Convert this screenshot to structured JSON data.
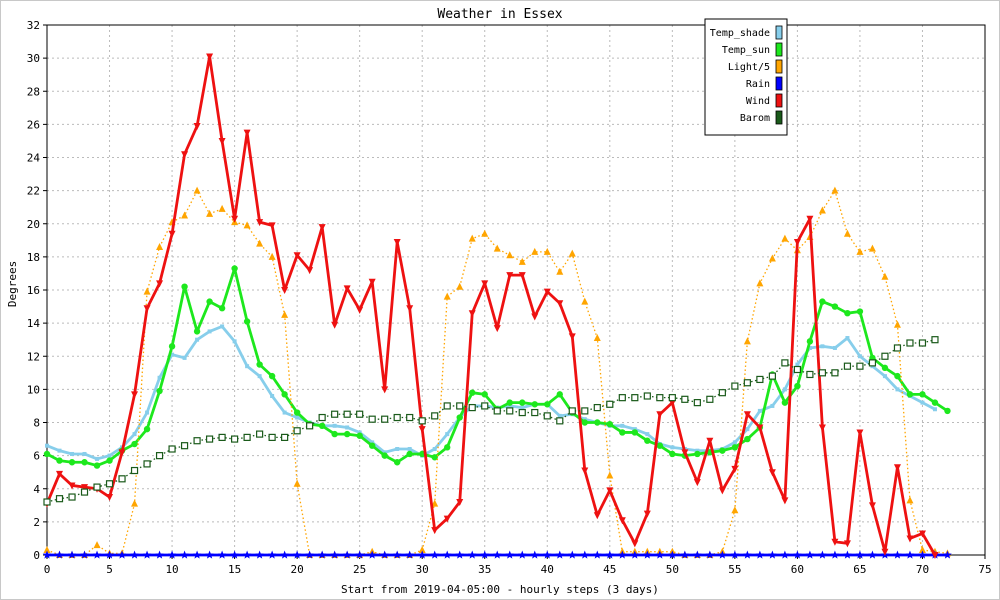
{
  "chart_data": {
    "type": "line",
    "title": "Weather in Essex",
    "xlabel": "Start from 2019-04-05:00 - hourly steps (3 days)",
    "ylabel": "Degrees",
    "xlim": [
      0,
      75
    ],
    "ylim": [
      0,
      32
    ],
    "xticks": [
      0,
      5,
      10,
      15,
      20,
      25,
      30,
      35,
      40,
      45,
      50,
      55,
      60,
      65,
      70,
      75
    ],
    "yticks": [
      0,
      2,
      4,
      6,
      8,
      10,
      12,
      14,
      16,
      18,
      20,
      22,
      24,
      26,
      28,
      30,
      32
    ],
    "grid": true,
    "legend_position": "top-right",
    "series": [
      {
        "name": "Temp_shade",
        "color": "#87ceeb",
        "style": "thick-line",
        "marker": "small-square",
        "values": [
          6.6,
          6.3,
          6.1,
          6.1,
          5.8,
          6.0,
          6.5,
          7.3,
          8.6,
          10.7,
          12.1,
          11.9,
          13.0,
          13.5,
          13.8,
          12.9,
          11.4,
          10.8,
          9.6,
          8.6,
          8.3,
          8.0,
          7.8,
          7.8,
          7.7,
          7.4,
          6.8,
          6.2,
          6.4,
          6.4,
          6.0,
          6.4,
          7.3,
          8.3,
          9.0,
          9.0,
          8.9,
          9.0,
          8.9,
          9.1,
          9.1,
          8.4,
          8.5,
          8.2,
          8.0,
          7.8,
          7.8,
          7.6,
          7.3,
          6.7,
          6.5,
          6.4,
          6.3,
          6.3,
          6.4,
          6.8,
          7.6,
          8.7,
          9.0,
          10.0,
          11.5,
          12.5,
          12.6,
          12.5,
          13.1,
          12.0,
          11.4,
          10.8,
          10.0,
          9.6,
          9.2,
          8.8
        ]
      },
      {
        "name": "Temp_sun",
        "color": "#1de81d",
        "style": "thick-line",
        "marker": "circle",
        "values": [
          6.1,
          5.7,
          5.6,
          5.6,
          5.4,
          5.7,
          6.3,
          6.7,
          7.6,
          9.9,
          12.6,
          16.2,
          13.5,
          15.3,
          14.9,
          17.3,
          14.1,
          11.5,
          10.8,
          9.7,
          8.6,
          7.9,
          7.8,
          7.3,
          7.3,
          7.2,
          6.6,
          6.0,
          5.6,
          6.1,
          6.1,
          5.9,
          6.5,
          8.3,
          9.8,
          9.7,
          8.8,
          9.2,
          9.2,
          9.1,
          9.1,
          9.7,
          8.6,
          8.0,
          8.0,
          7.9,
          7.4,
          7.4,
          6.9,
          6.6,
          6.1,
          6.0,
          6.1,
          6.2,
          6.3,
          6.5,
          7.0,
          7.7,
          10.9,
          9.2,
          10.2,
          12.9,
          15.3,
          15.0,
          14.6,
          14.7,
          11.9,
          11.3,
          10.8,
          9.7,
          9.7,
          9.2,
          8.7
        ]
      },
      {
        "name": "Light/5",
        "color": "#ffa500",
        "style": "dotted-line",
        "marker": "triangle-up",
        "values": [
          0.3,
          0.0,
          0.0,
          0.0,
          0.6,
          0.1,
          0.1,
          3.1,
          15.9,
          18.6,
          20.1,
          20.5,
          22.0,
          20.6,
          20.9,
          20.1,
          19.9,
          18.8,
          18.0,
          14.5,
          4.3,
          0.0,
          0.0,
          0.0,
          0.0,
          0.0,
          0.2,
          0.0,
          0.0,
          0.0,
          0.3,
          3.1,
          15.6,
          16.2,
          19.1,
          19.4,
          18.5,
          18.1,
          17.7,
          18.3,
          18.3,
          17.1,
          18.2,
          15.3,
          13.1,
          4.8,
          0.2,
          0.2,
          0.2,
          0.2,
          0.2,
          0.0,
          0.0,
          0.0,
          0.2,
          2.7,
          12.9,
          16.4,
          17.9,
          19.1,
          18.4,
          19.2,
          20.8,
          22.0,
          19.4,
          18.3,
          18.5,
          16.8,
          13.9,
          3.3,
          0.3,
          0.2,
          0.1
        ]
      },
      {
        "name": "Rain",
        "color": "#0000ff",
        "style": "thick-line",
        "marker": "star",
        "values": [
          0,
          0,
          0,
          0,
          0,
          0,
          0,
          0,
          0,
          0,
          0,
          0,
          0,
          0,
          0,
          0,
          0,
          0,
          0,
          0,
          0,
          0,
          0,
          0,
          0,
          0,
          0,
          0,
          0,
          0,
          0,
          0,
          0,
          0,
          0,
          0,
          0,
          0,
          0,
          0,
          0,
          0,
          0,
          0,
          0,
          0,
          0,
          0,
          0,
          0,
          0,
          0,
          0,
          0,
          0,
          0,
          0,
          0,
          0,
          0,
          0,
          0,
          0,
          0,
          0,
          0,
          0,
          0,
          0,
          0,
          0,
          0,
          0
        ]
      },
      {
        "name": "Wind",
        "color": "#ee1111",
        "style": "thick-line",
        "marker": "triangle-down",
        "values": [
          3.1,
          4.9,
          4.2,
          4.1,
          4.0,
          3.5,
          6.2,
          9.7,
          14.9,
          16.4,
          19.4,
          24.2,
          25.9,
          30.1,
          25.0,
          20.3,
          25.5,
          20.1,
          19.9,
          16.0,
          18.1,
          17.2,
          19.8,
          13.9,
          16.1,
          14.8,
          16.5,
          10.0,
          18.9,
          14.9,
          7.6,
          1.5,
          2.2,
          3.2,
          14.6,
          16.4,
          13.7,
          16.9,
          16.9,
          14.4,
          15.9,
          15.2,
          13.2,
          5.1,
          2.4,
          3.9,
          2.1,
          0.7,
          2.5,
          8.5,
          9.2,
          6.2,
          4.4,
          6.9,
          3.9,
          5.2,
          8.5,
          7.7,
          5.0,
          3.3,
          18.9,
          20.3,
          7.7,
          0.8,
          0.7,
          7.4,
          3.0,
          0.2,
          5.3,
          1.0,
          1.3,
          0.0
        ]
      },
      {
        "name": "Barom",
        "color": "#1a5a1a",
        "style": "dotted-line",
        "marker": "open-square",
        "values": [
          3.2,
          3.4,
          3.5,
          3.8,
          4.1,
          4.3,
          4.6,
          5.1,
          5.5,
          6.0,
          6.4,
          6.6,
          6.9,
          7.0,
          7.1,
          7.0,
          7.1,
          7.3,
          7.1,
          7.1,
          7.5,
          7.8,
          8.3,
          8.5,
          8.5,
          8.5,
          8.2,
          8.2,
          8.3,
          8.3,
          8.1,
          8.4,
          9.0,
          9.0,
          8.9,
          9.0,
          8.7,
          8.7,
          8.6,
          8.6,
          8.4,
          8.1,
          8.7,
          8.7,
          8.9,
          9.1,
          9.5,
          9.5,
          9.6,
          9.5,
          9.5,
          9.4,
          9.2,
          9.4,
          9.8,
          10.2,
          10.4,
          10.6,
          10.8,
          11.6,
          11.2,
          10.9,
          11.0,
          11.0,
          11.4,
          11.4,
          11.6,
          12.0,
          12.5,
          12.8,
          12.8,
          13.0
        ]
      }
    ]
  }
}
